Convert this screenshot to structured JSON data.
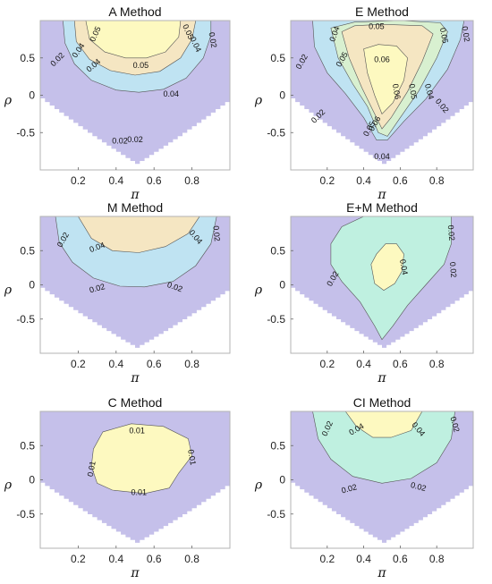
{
  "chart_data": [
    {
      "type": "contour",
      "title": "A Method",
      "xlabel": "π",
      "ylabel": "ρ",
      "xlim": [
        0,
        1
      ],
      "ylim": [
        -1,
        1
      ],
      "xticks": [
        "0.2",
        "0.4",
        "0.6",
        "0.8"
      ],
      "yticks": [
        "0.5",
        "0",
        "-0.5"
      ],
      "levels": [
        0.02,
        0.04,
        0.05
      ],
      "contour_labels": [
        {
          "text": "0.05",
          "x": 0.29,
          "y": 0.82,
          "angle": 65
        },
        {
          "text": "0.05",
          "x": 0.78,
          "y": 0.85,
          "angle": -65
        },
        {
          "text": "0.04",
          "x": 0.2,
          "y": 0.6,
          "angle": 55
        },
        {
          "text": "0.04",
          "x": 0.82,
          "y": 0.68,
          "angle": -65
        },
        {
          "text": "0.02",
          "x": 0.09,
          "y": 0.48,
          "angle": 45
        },
        {
          "text": "0.02",
          "x": 0.91,
          "y": 0.74,
          "angle": -80
        },
        {
          "text": "0.04",
          "x": 0.28,
          "y": 0.4,
          "angle": 40
        },
        {
          "text": "0.05",
          "x": 0.53,
          "y": 0.4,
          "angle": 0
        },
        {
          "text": "0.04",
          "x": 0.69,
          "y": 0.02,
          "angle": 0
        },
        {
          "text": "0.02",
          "x": 0.42,
          "y": -0.61,
          "angle": 0
        },
        {
          "text": "0.02",
          "x": 0.5,
          "y": -0.59,
          "angle": 0
        }
      ]
    },
    {
      "type": "contour",
      "title": "E Method",
      "xlabel": "π",
      "ylabel": "ρ",
      "xlim": [
        0,
        1
      ],
      "ylim": [
        -1,
        1
      ],
      "xticks": [
        "0.2",
        "0.4",
        "0.6",
        "0.8"
      ],
      "yticks": [
        "0.5",
        "0",
        "-0.5"
      ],
      "levels": [
        0.02,
        0.04,
        0.05,
        0.06
      ],
      "contour_labels": [
        {
          "text": "0.04",
          "x": 0.24,
          "y": 0.82,
          "angle": 70
        },
        {
          "text": "0.05",
          "x": 0.47,
          "y": 0.92,
          "angle": 0
        },
        {
          "text": "0.05",
          "x": 0.84,
          "y": 0.8,
          "angle": -80
        },
        {
          "text": "0.02",
          "x": 0.06,
          "y": 0.45,
          "angle": 60
        },
        {
          "text": "0.05",
          "x": 0.28,
          "y": 0.48,
          "angle": 60
        },
        {
          "text": "0.06",
          "x": 0.5,
          "y": 0.48,
          "angle": 0
        },
        {
          "text": "0.02",
          "x": 0.96,
          "y": 0.82,
          "angle": -80
        },
        {
          "text": "0.06",
          "x": 0.58,
          "y": 0.05,
          "angle": -80
        },
        {
          "text": "0.05",
          "x": 0.67,
          "y": 0.05,
          "angle": -80
        },
        {
          "text": "0.04",
          "x": 0.76,
          "y": 0.05,
          "angle": -75
        },
        {
          "text": "0.02",
          "x": 0.15,
          "y": -0.28,
          "angle": 45
        },
        {
          "text": "0.02",
          "x": 0.83,
          "y": -0.14,
          "angle": -50
        },
        {
          "text": "0.06",
          "x": 0.46,
          "y": -0.38,
          "angle": 60
        },
        {
          "text": "0.05",
          "x": 0.43,
          "y": -0.45,
          "angle": 60
        },
        {
          "text": "0.04",
          "x": 0.5,
          "y": -0.82,
          "angle": 0
        }
      ]
    },
    {
      "type": "contour",
      "title": "M Method",
      "xlabel": "π",
      "ylabel": "ρ",
      "xlim": [
        0,
        1
      ],
      "ylim": [
        -1,
        1
      ],
      "xticks": [
        "0.2",
        "0.4",
        "0.6",
        "0.8"
      ],
      "yticks": [
        "0.5",
        "0",
        "-0.5"
      ],
      "levels": [
        0.02,
        0.04
      ],
      "contour_labels": [
        {
          "text": "0.02",
          "x": 0.12,
          "y": 0.66,
          "angle": 60
        },
        {
          "text": "0.04",
          "x": 0.82,
          "y": 0.7,
          "angle": -50
        },
        {
          "text": "0.02",
          "x": 0.93,
          "y": 0.75,
          "angle": -85
        },
        {
          "text": "0.04",
          "x": 0.3,
          "y": 0.55,
          "angle": 20
        },
        {
          "text": "0.02",
          "x": 0.3,
          "y": -0.05,
          "angle": 15
        },
        {
          "text": "0.02",
          "x": 0.71,
          "y": -0.03,
          "angle": -20
        }
      ]
    },
    {
      "type": "contour",
      "title": "E+M Method",
      "xlabel": "π",
      "ylabel": "ρ",
      "xlim": [
        0,
        1
      ],
      "ylim": [
        -1,
        1
      ],
      "xticks": [
        "0.2",
        "0.4",
        "0.6",
        "0.8"
      ],
      "yticks": [
        "0.5",
        "0",
        "-0.5"
      ],
      "levels": [
        0.02,
        0.04
      ],
      "contour_labels": [
        {
          "text": "0.04",
          "x": 0.62,
          "y": 0.26,
          "angle": -80
        },
        {
          "text": "0.02",
          "x": 0.88,
          "y": 0.76,
          "angle": -85
        },
        {
          "text": "0.02",
          "x": 0.23,
          "y": 0.09,
          "angle": 60
        },
        {
          "text": "0.02",
          "x": 0.89,
          "y": 0.22,
          "angle": -85
        }
      ]
    },
    {
      "type": "contour",
      "title": "C Method",
      "xlabel": "π",
      "ylabel": "ρ",
      "xlim": [
        0,
        1
      ],
      "ylim": [
        -1,
        1
      ],
      "xticks": [
        "0.2",
        "0.4",
        "0.6",
        "0.8"
      ],
      "yticks": [
        "0.5",
        "0",
        "-0.5"
      ],
      "levels": [
        0.01
      ],
      "contour_labels": [
        {
          "text": "0.01",
          "x": 0.51,
          "y": 0.72,
          "angle": 0
        },
        {
          "text": "0.01",
          "x": 0.8,
          "y": 0.33,
          "angle": -80
        },
        {
          "text": "0.01",
          "x": 0.27,
          "y": 0.16,
          "angle": 80
        },
        {
          "text": "0.01",
          "x": 0.52,
          "y": -0.18,
          "angle": 0
        }
      ]
    },
    {
      "type": "contour",
      "title": "CI Method",
      "xlabel": "π",
      "ylabel": "ρ",
      "xlim": [
        0,
        1
      ],
      "ylim": [
        -1,
        1
      ],
      "xticks": [
        "0.2",
        "0.4",
        "0.6",
        "0.8"
      ],
      "yticks": [
        "0.5",
        "0",
        "-0.5"
      ],
      "levels": [
        0.02,
        0.04
      ],
      "contour_labels": [
        {
          "text": "0.02",
          "x": 0.2,
          "y": 0.75,
          "angle": 65
        },
        {
          "text": "0.04",
          "x": 0.36,
          "y": 0.74,
          "angle": 30
        },
        {
          "text": "0.04",
          "x": 0.7,
          "y": 0.74,
          "angle": -50
        },
        {
          "text": "0.02",
          "x": 0.9,
          "y": 0.81,
          "angle": -75
        },
        {
          "text": "0.02",
          "x": 0.32,
          "y": -0.13,
          "angle": 15
        },
        {
          "text": "0.02",
          "x": 0.7,
          "y": -0.1,
          "angle": -15
        }
      ]
    }
  ],
  "colors": {
    "outside": "#ffffff",
    "level_0": "#c5c0ea",
    "level_1": "#bfe3f2",
    "level_2": "#f5e6c2",
    "level_3": "#fdf9c0",
    "em_mid": "#bff0e0",
    "em_core": "#fdf9c0",
    "ci_mid": "#bff0e0",
    "ci_top": "#fdf9c0",
    "e_green": "#d8f0d0",
    "contour": "#555555",
    "axis": "#b3b3b3"
  }
}
